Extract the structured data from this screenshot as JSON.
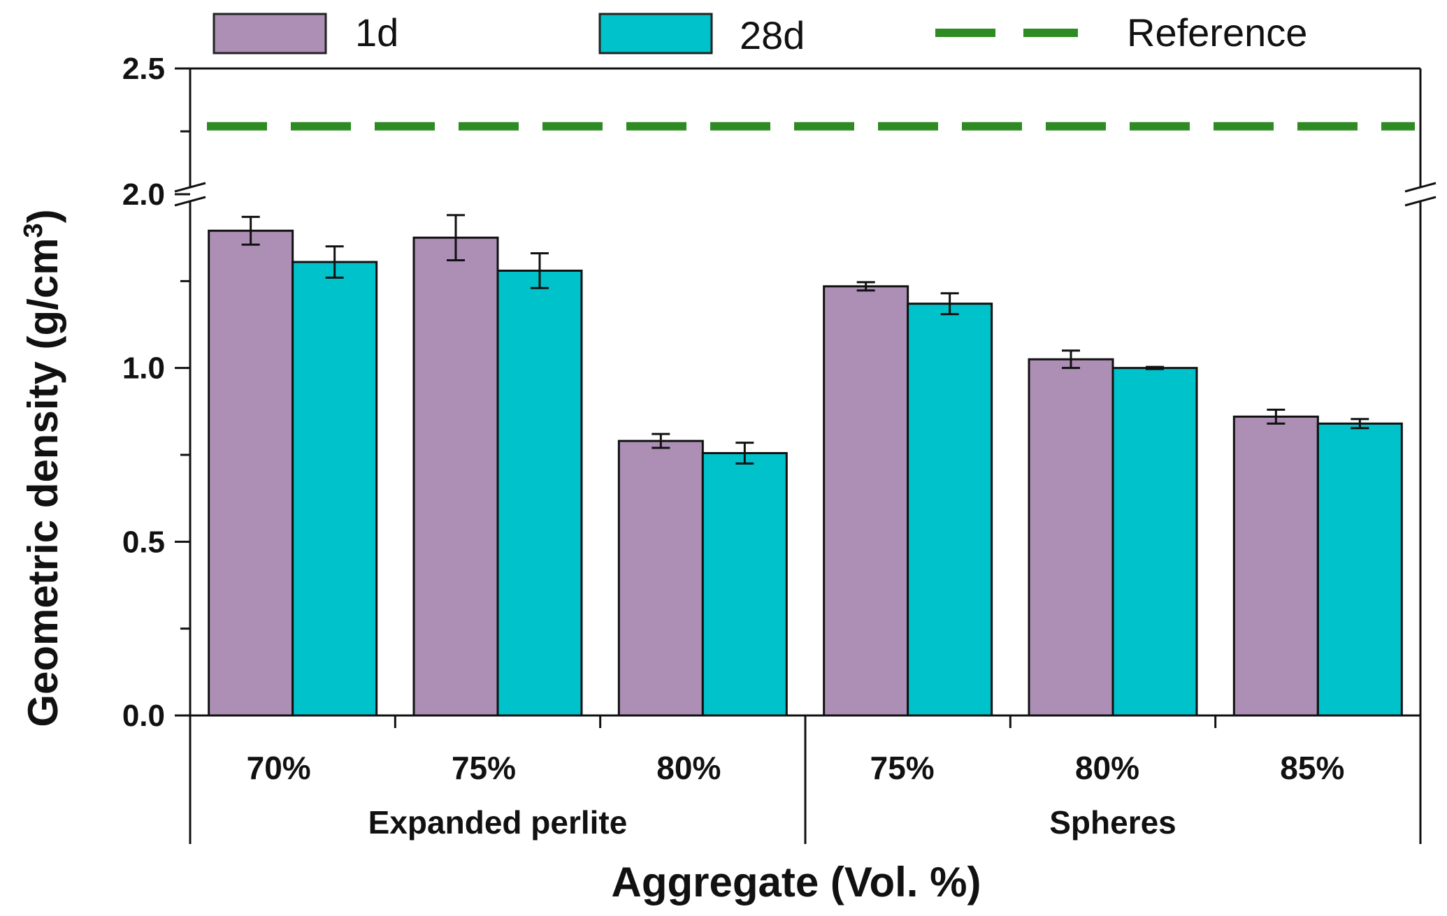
{
  "chart_data": {
    "type": "bar",
    "xlabel": "Aggregate (Vol. %)",
    "ylabel": "Geometric density (g/cm³)",
    "ylabel_main": "Geometric density (g/cm",
    "ylabel_sup": "3",
    "ylabel_close": ")",
    "ylim": [
      0,
      2.5
    ],
    "axis_break": [
      1.5,
      2.0
    ],
    "y_ticks": [
      {
        "value": 0.0,
        "label": "0.0"
      },
      {
        "value": 0.5,
        "label": "0.5"
      },
      {
        "value": 1.0,
        "label": "1.0"
      },
      {
        "value": 2.0,
        "label": "2.0"
      },
      {
        "value": 2.5,
        "label": "2.5"
      }
    ],
    "groups": [
      {
        "name": "Expanded perlite",
        "categories": [
          "70%",
          "75%",
          "80%"
        ]
      },
      {
        "name": "Spheres",
        "categories": [
          "75%",
          "80%",
          "85%"
        ]
      }
    ],
    "categories": [
      "70%",
      "75%",
      "80%",
      "75%",
      "80%",
      "85%"
    ],
    "series": [
      {
        "name": "1d",
        "color": "#ad8fb6",
        "values": [
          1.395,
          1.375,
          0.79,
          1.235,
          1.025,
          0.86
        ],
        "errors": [
          0.04,
          0.065,
          0.02,
          0.012,
          0.025,
          0.02
        ]
      },
      {
        "name": "28d",
        "color": "#00c2cb",
        "values": [
          1.305,
          1.28,
          0.755,
          1.185,
          1.0,
          0.84
        ],
        "errors": [
          0.045,
          0.05,
          0.03,
          0.03,
          0.003,
          0.013
        ]
      }
    ],
    "reference": {
      "name": "Reference",
      "value": 2.27,
      "color": "#2e8b24"
    },
    "legend_position": "top"
  }
}
